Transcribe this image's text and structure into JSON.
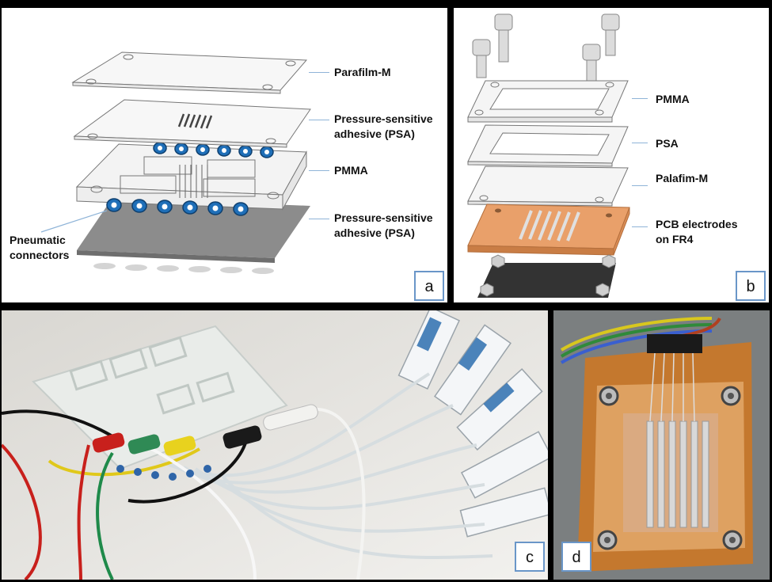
{
  "panels": {
    "a": {
      "letter": "a",
      "labels": {
        "parafilm": "Parafilm-M",
        "psa_top_line1": "Pressure-sensitive",
        "psa_top_line2": "adhesive (PSA)",
        "pmma": "PMMA",
        "psa_bottom_line1": "Pressure-sensitive",
        "psa_bottom_line2": "adhesive (PSA)",
        "pneumatic_line1": "Pneumatic",
        "pneumatic_line2": "connectors"
      }
    },
    "b": {
      "letter": "b",
      "labels": {
        "pmma": "PMMA",
        "psa": "PSA",
        "palafim": "Palafim-M",
        "pcb_line1": "PCB electrodes",
        "pcb_line2": "on FR4"
      }
    },
    "c": {
      "letter": "c"
    },
    "d": {
      "letter": "d"
    }
  },
  "colors": {
    "connector_blue": "#1f6fb8",
    "fr4_orange": "#e9a06a",
    "leader_blue": "#8fb4d8"
  }
}
